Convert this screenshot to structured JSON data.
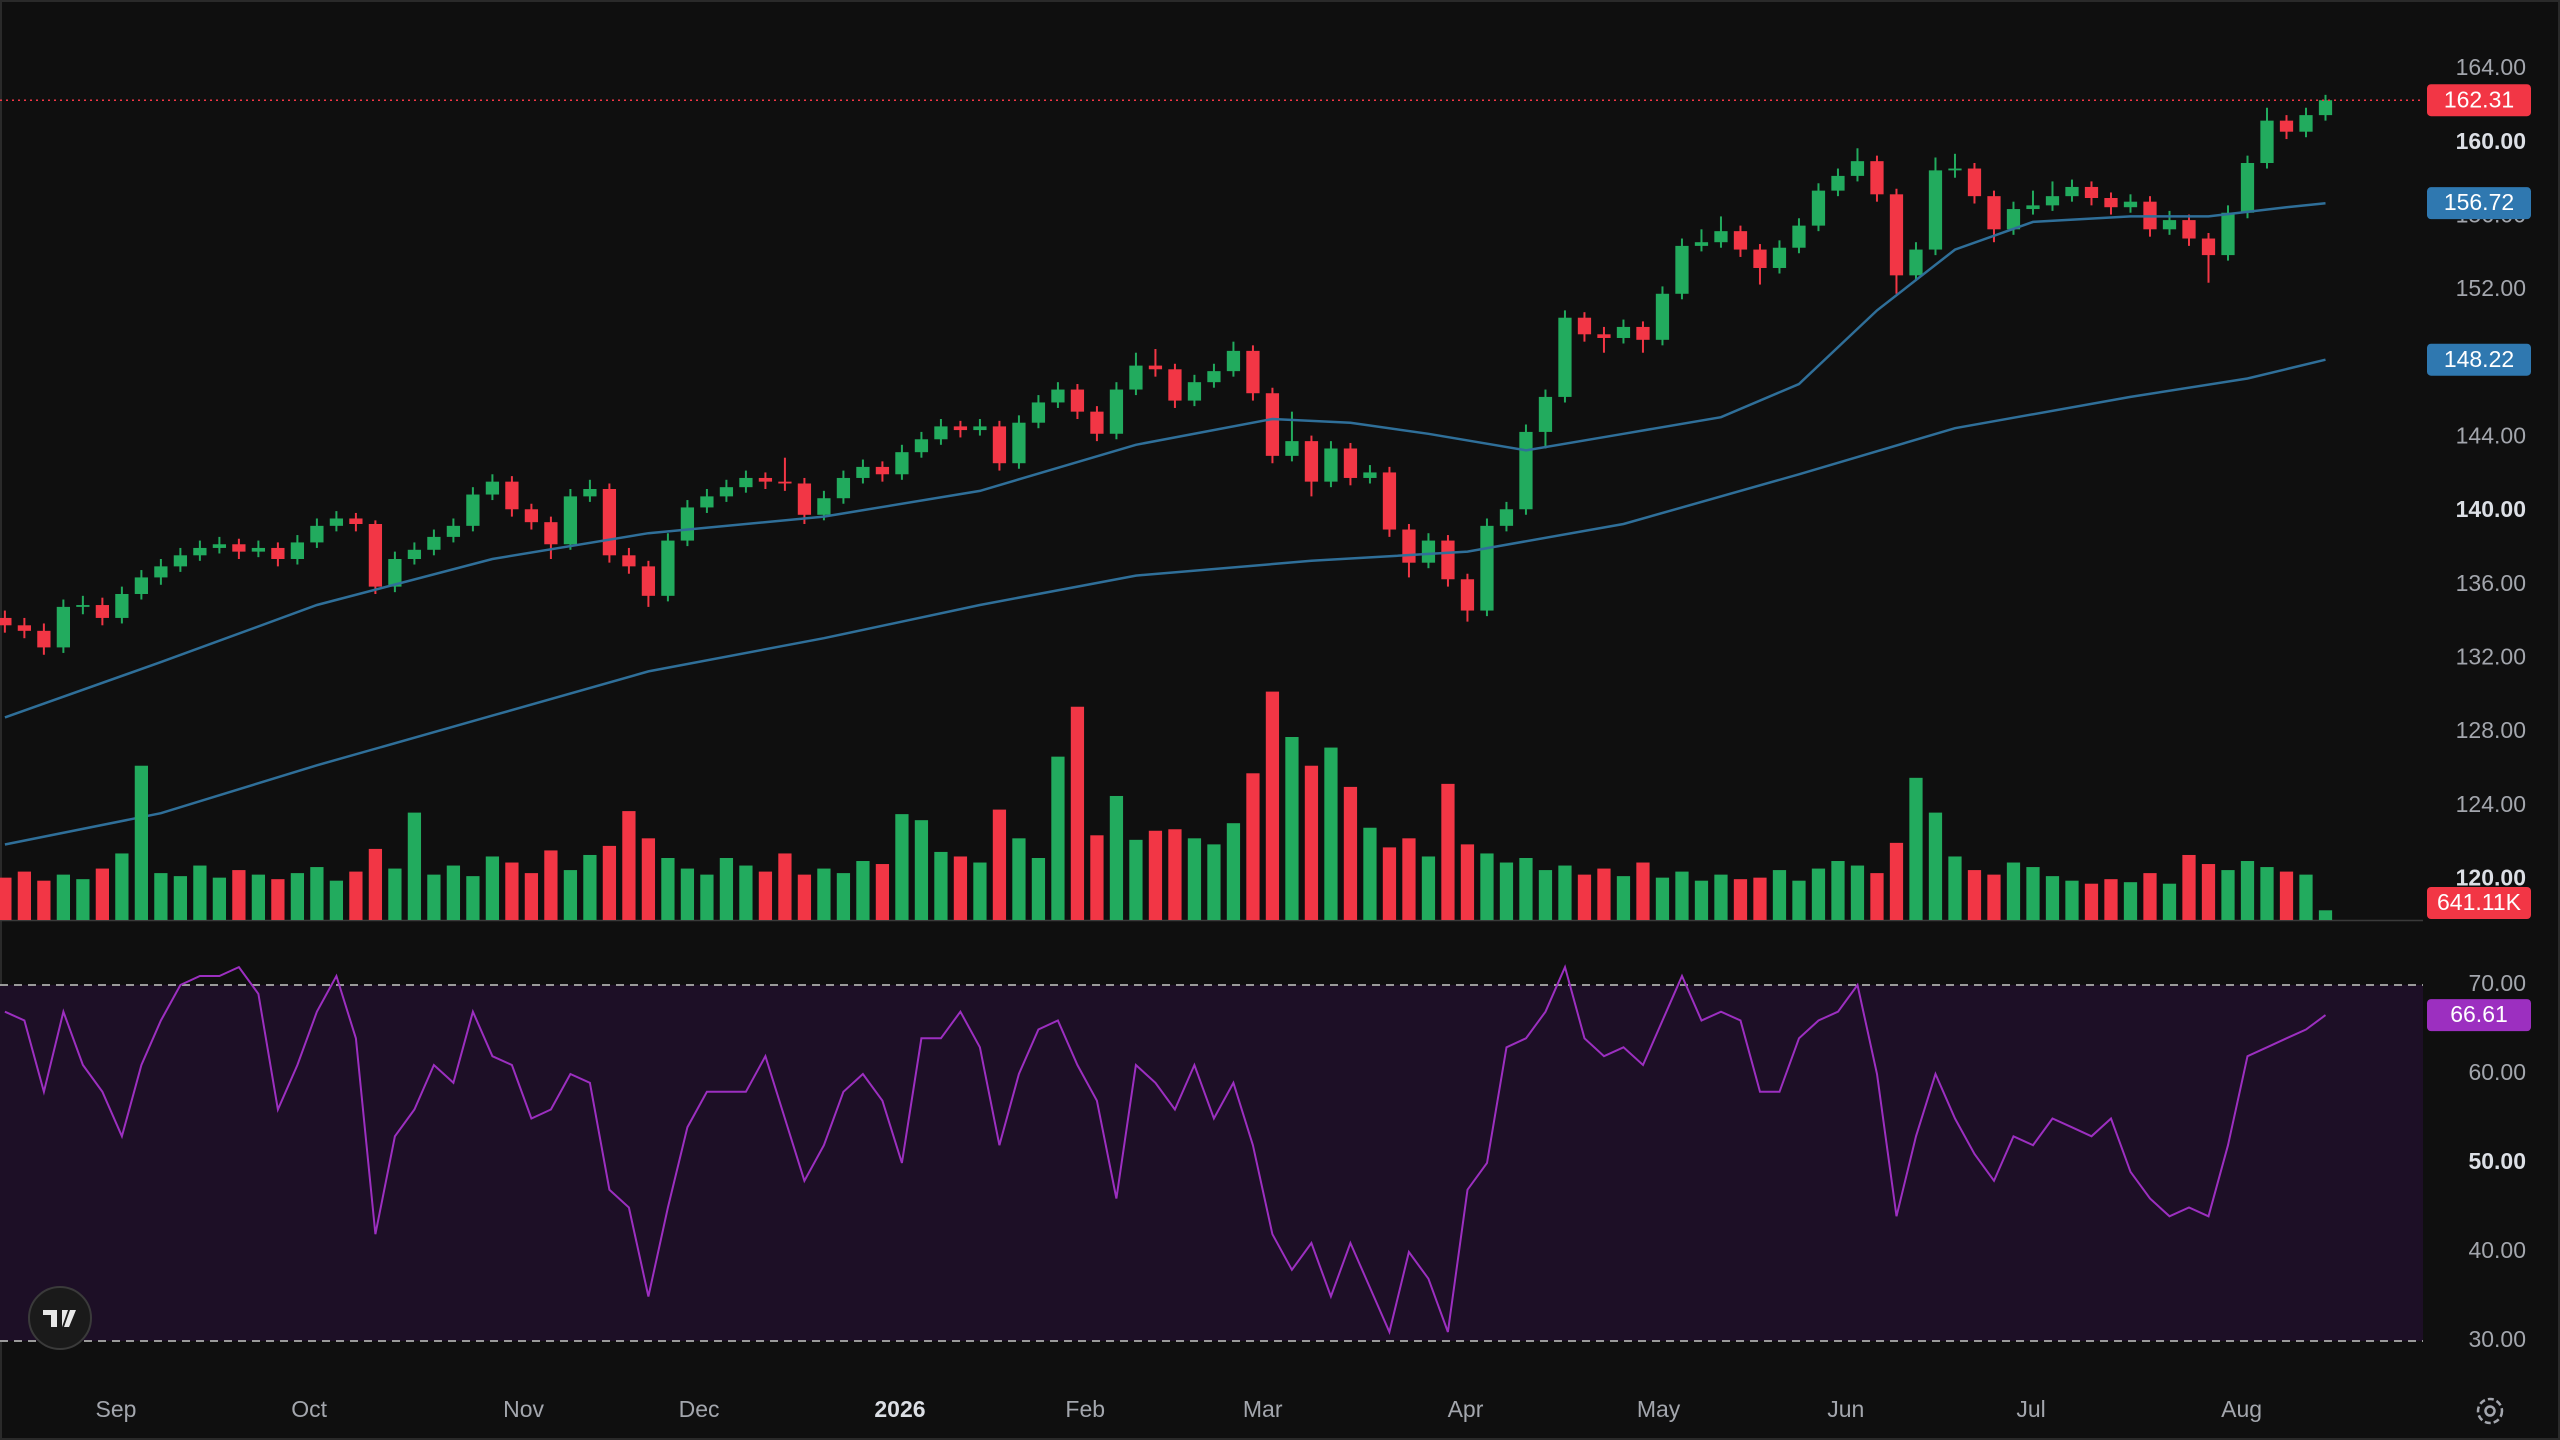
{
  "chart_data": [
    {
      "type": "candlestick",
      "xlim": [
        -0.25,
        124
      ],
      "xticks": [
        {
          "value": 5.7,
          "label": "Sep"
        },
        {
          "value": 15.6,
          "label": "Oct"
        },
        {
          "value": 26.6,
          "label": "Nov"
        },
        {
          "value": 35.6,
          "label": "Dec"
        },
        {
          "value": 45.9,
          "label": "2026"
        },
        {
          "value": 55.4,
          "label": "Feb"
        },
        {
          "value": 64.5,
          "label": "Mar"
        },
        {
          "value": 74.9,
          "label": "Apr"
        },
        {
          "value": 84.8,
          "label": "May"
        },
        {
          "value": 94.4,
          "label": "Jun"
        },
        {
          "value": 103.9,
          "label": "Jul"
        },
        {
          "value": 114.7,
          "label": "Aug"
        }
      ],
      "ylim": [
        117.8,
        167.75
      ],
      "yticks": [
        {
          "value": 120,
          "label": "120.00"
        },
        {
          "value": 124,
          "label": "124.00"
        },
        {
          "value": 128,
          "label": "128.00"
        },
        {
          "value": 132,
          "label": "132.00"
        },
        {
          "value": 136,
          "label": "136.00"
        },
        {
          "value": 140,
          "label": "140.00"
        },
        {
          "value": 144,
          "label": "144.00"
        },
        {
          "value": 148,
          "label": "148.00"
        },
        {
          "value": 152,
          "label": "152.00"
        },
        {
          "value": 156,
          "label": "156.00"
        },
        {
          "value": 160,
          "label": "160.00"
        },
        {
          "value": 164,
          "label": "164.00"
        }
      ],
      "up_color": "#22ab5e",
      "down_color": "#f23645",
      "candles": [
        [
          134.2,
          134.6,
          133.4,
          133.8
        ],
        [
          133.8,
          134.2,
          133.1,
          133.5
        ],
        [
          133.5,
          133.9,
          132.2,
          132.6
        ],
        [
          132.6,
          135.2,
          132.3,
          134.8
        ],
        [
          134.8,
          135.4,
          134.4,
          134.9
        ],
        [
          134.9,
          135.3,
          133.8,
          134.2
        ],
        [
          134.2,
          135.9,
          133.9,
          135.5
        ],
        [
          135.5,
          136.8,
          135.2,
          136.4
        ],
        [
          136.4,
          137.4,
          136.0,
          137
        ],
        [
          137,
          138,
          136.7,
          137.6
        ],
        [
          137.6,
          138.4,
          137.3,
          138
        ],
        [
          138,
          138.6,
          137.7,
          138.2
        ],
        [
          138.2,
          138.5,
          137.4,
          137.8
        ],
        [
          137.8,
          138.4,
          137.5,
          138
        ],
        [
          138,
          138.3,
          137.0,
          137.4
        ],
        [
          137.4,
          138.7,
          137.1,
          138.3
        ],
        [
          138.3,
          139.6,
          138,
          139.2
        ],
        [
          139.2,
          140,
          138.9,
          139.6
        ],
        [
          139.6,
          139.9,
          138.9,
          139.3
        ],
        [
          139.3,
          139.5,
          135.5,
          135.9
        ],
        [
          135.9,
          137.8,
          135.6,
          137.4
        ],
        [
          137.4,
          138.3,
          137.1,
          137.9
        ],
        [
          137.9,
          139,
          137.6,
          138.6
        ],
        [
          138.6,
          139.6,
          138.3,
          139.2
        ],
        [
          139.2,
          141.3,
          138.9,
          140.9
        ],
        [
          140.9,
          142,
          140.6,
          141.6
        ],
        [
          141.6,
          141.9,
          139.7,
          140.1
        ],
        [
          140.1,
          140.4,
          139,
          139.4
        ],
        [
          139.4,
          139.7,
          137.4,
          138.2
        ],
        [
          138.2,
          141.2,
          137.9,
          140.8
        ],
        [
          140.8,
          141.7,
          140.5,
          141.2
        ],
        [
          141.2,
          141.5,
          137.2,
          137.6
        ],
        [
          137.6,
          138,
          136.6,
          137
        ],
        [
          137,
          137.3,
          134.8,
          135.4
        ],
        [
          135.4,
          138.8,
          135.1,
          138.4
        ],
        [
          138.4,
          140.6,
          138.1,
          140.2
        ],
        [
          140.2,
          141.2,
          139.9,
          140.8
        ],
        [
          140.8,
          141.7,
          140.5,
          141.3
        ],
        [
          141.3,
          142.2,
          141,
          141.8
        ],
        [
          141.8,
          142.1,
          141.2,
          141.6
        ],
        [
          141.6,
          142.9,
          141.1,
          141.5
        ],
        [
          141.5,
          141.8,
          139.3,
          139.8
        ],
        [
          139.8,
          141.1,
          139.5,
          140.7
        ],
        [
          140.7,
          142.2,
          140.4,
          141.8
        ],
        [
          141.8,
          142.8,
          141.5,
          142.4
        ],
        [
          142.4,
          142.7,
          141.6,
          142
        ],
        [
          142,
          143.6,
          141.7,
          143.2
        ],
        [
          143.2,
          144.3,
          142.9,
          143.9
        ],
        [
          143.9,
          145,
          143.6,
          144.6
        ],
        [
          144.6,
          144.9,
          144,
          144.4
        ],
        [
          144.4,
          145,
          144.1,
          144.6
        ],
        [
          144.6,
          144.9,
          142.2,
          142.6
        ],
        [
          142.6,
          145.2,
          142.3,
          144.8
        ],
        [
          144.8,
          146.3,
          144.5,
          145.9
        ],
        [
          145.9,
          147,
          145.6,
          146.6
        ],
        [
          146.6,
          146.9,
          145,
          145.4
        ],
        [
          145.4,
          145.7,
          143.8,
          144.2
        ],
        [
          144.2,
          147,
          143.9,
          146.6
        ],
        [
          146.6,
          148.6,
          146.3,
          147.9
        ],
        [
          147.9,
          148.8,
          147.3,
          147.7
        ],
        [
          147.7,
          148,
          145.6,
          146
        ],
        [
          146,
          147.4,
          145.7,
          147
        ],
        [
          147,
          148,
          146.7,
          147.6
        ],
        [
          147.6,
          149.2,
          147.3,
          148.7
        ],
        [
          148.7,
          149,
          146,
          146.4
        ],
        [
          146.4,
          146.7,
          142.6,
          143
        ],
        [
          143,
          145.4,
          142.7,
          143.8
        ],
        [
          143.8,
          144.1,
          140.8,
          141.6
        ],
        [
          141.6,
          143.8,
          141.3,
          143.4
        ],
        [
          143.4,
          143.7,
          141.4,
          141.8
        ],
        [
          141.8,
          142.5,
          141.5,
          142.1
        ],
        [
          142.1,
          142.4,
          138.6,
          139
        ],
        [
          139,
          139.3,
          136.4,
          137.2
        ],
        [
          137.2,
          138.8,
          136.9,
          138.4
        ],
        [
          138.4,
          138.7,
          135.9,
          136.3
        ],
        [
          136.3,
          136.6,
          134,
          134.6
        ],
        [
          134.6,
          139.6,
          134.3,
          139.2
        ],
        [
          139.2,
          140.5,
          138.9,
          140.1
        ],
        [
          140.1,
          144.7,
          139.8,
          144.3
        ],
        [
          144.3,
          146.6,
          143.4,
          146.2
        ],
        [
          146.2,
          150.9,
          145.9,
          150.5
        ],
        [
          150.5,
          150.8,
          149.2,
          149.6
        ],
        [
          149.6,
          150,
          148.6,
          149.4
        ],
        [
          149.4,
          150.4,
          149.1,
          150
        ],
        [
          150,
          150.3,
          148.6,
          149.3
        ],
        [
          149.3,
          152.2,
          149,
          151.8
        ],
        [
          151.8,
          154.8,
          151.5,
          154.4
        ],
        [
          154.4,
          155.3,
          154.1,
          154.6
        ],
        [
          154.6,
          156,
          154.3,
          155.2
        ],
        [
          155.2,
          155.5,
          153.8,
          154.2
        ],
        [
          154.2,
          154.5,
          152.3,
          153.2
        ],
        [
          153.2,
          154.7,
          152.9,
          154.3
        ],
        [
          154.3,
          155.9,
          154,
          155.5
        ],
        [
          155.5,
          157.8,
          155.2,
          157.4
        ],
        [
          157.4,
          158.6,
          157.1,
          158.2
        ],
        [
          158.2,
          159.7,
          157.9,
          159
        ],
        [
          159,
          159.3,
          156.8,
          157.2
        ],
        [
          157.2,
          157.5,
          151.8,
          152.8
        ],
        [
          152.8,
          154.6,
          152.5,
          154.2
        ],
        [
          154.2,
          159.2,
          153.9,
          158.5
        ],
        [
          158.5,
          159.4,
          158.1,
          158.6
        ],
        [
          158.6,
          158.9,
          156.7,
          157.1
        ],
        [
          157.1,
          157.4,
          154.6,
          155.3
        ],
        [
          155.3,
          156.8,
          155,
          156.4
        ],
        [
          156.4,
          157.4,
          156.1,
          156.6
        ],
        [
          156.6,
          157.9,
          156.3,
          157.1
        ],
        [
          157.1,
          158,
          156.8,
          157.6
        ],
        [
          157.6,
          157.9,
          156.6,
          157
        ],
        [
          157,
          157.3,
          156.1,
          156.5
        ],
        [
          156.5,
          157.2,
          156.2,
          156.8
        ],
        [
          156.8,
          157.1,
          154.9,
          155.3
        ],
        [
          155.3,
          156.3,
          155,
          155.8
        ],
        [
          155.8,
          156.1,
          154.4,
          154.8
        ],
        [
          154.8,
          155.1,
          152.4,
          153.9
        ],
        [
          153.9,
          156.6,
          153.6,
          156.2
        ],
        [
          156.2,
          159.3,
          155.9,
          158.9
        ],
        [
          158.9,
          161.9,
          158.6,
          161.2
        ],
        [
          161.2,
          161.5,
          160.2,
          160.6
        ],
        [
          160.6,
          161.9,
          160.3,
          161.5
        ],
        [
          161.5,
          162.6,
          161.2,
          162.31
        ]
      ],
      "overlays": [
        {
          "color": "#2f6f99",
          "x": [
            0,
            8,
            16,
            25,
            33,
            42,
            50,
            58,
            65,
            69,
            73,
            78,
            83,
            88,
            92,
            96,
            100,
            104,
            109,
            113,
            117,
            119
          ],
          "values": [
            128.8,
            131.8,
            134.9,
            137.4,
            138.8,
            139.7,
            141.1,
            143.6,
            145.0,
            144.8,
            144.2,
            143.3,
            144.2,
            145.1,
            146.9,
            150.9,
            154.2,
            155.7,
            156.0,
            156.0,
            156.5,
            156.72
          ]
        },
        {
          "color": "#2f6f99",
          "x": [
            0,
            8,
            16,
            25,
            33,
            42,
            50,
            58,
            67,
            75,
            83,
            92,
            100,
            109,
            115,
            119
          ],
          "values": [
            121.9,
            123.6,
            126.2,
            128.9,
            131.3,
            133.1,
            134.9,
            136.5,
            137.3,
            137.8,
            139.3,
            142,
            144.5,
            146.2,
            147.2,
            148.22
          ]
        }
      ]
    },
    {
      "type": "volume",
      "ylim": [
        0,
        16000000
      ],
      "values": [
        2800000,
        3200000,
        2600000,
        3000000,
        2700000,
        3400000,
        4400000,
        10200000,
        3100000,
        2900000,
        3600000,
        2800000,
        3300000,
        3000000,
        2700000,
        3100000,
        3500000,
        2600000,
        3200000,
        4700000,
        3400000,
        7100000,
        3000000,
        3600000,
        2900000,
        4200000,
        3800000,
        3100000,
        4600000,
        3300000,
        4300000,
        4900000,
        7200000,
        5400000,
        4100000,
        3400000,
        3000000,
        4100000,
        3600000,
        3200000,
        4400000,
        3000000,
        3400000,
        3100000,
        3900000,
        3700000,
        7000000,
        6600000,
        4500000,
        4200000,
        3800000,
        7300000,
        5400000,
        4100000,
        10800000,
        14100000,
        5600000,
        8200000,
        5300000,
        5900000,
        6000000,
        5400000,
        5000000,
        6400000,
        9700000,
        15100000,
        12100000,
        10200000,
        11400000,
        8800000,
        6100000,
        4800000,
        5400000,
        4200000,
        9000000,
        5000000,
        4400000,
        3800000,
        4100000,
        3300000,
        3600000,
        3000000,
        3400000,
        2900000,
        3800000,
        2800000,
        3200000,
        2600000,
        3000000,
        2700000,
        2800000,
        3300000,
        2600000,
        3400000,
        3900000,
        3600000,
        3100000,
        5100000,
        9400000,
        7100000,
        4200000,
        3300000,
        3000000,
        3800000,
        3500000,
        2900000,
        2600000,
        2400000,
        2700000,
        2500000,
        3100000,
        2400000,
        4300000,
        3700000,
        3300000,
        3900000,
        3500000,
        3200000,
        3000000,
        641110
      ],
      "last_value_label": "641.11K"
    },
    {
      "type": "rsi",
      "ylim": [
        25.5,
        75.5
      ],
      "yticks": [
        {
          "value": 30,
          "label": "30.00"
        },
        {
          "value": 40,
          "label": "40.00"
        },
        {
          "value": 50,
          "label": "50.00"
        },
        {
          "value": 60,
          "label": "60.00"
        },
        {
          "value": 70,
          "label": "70.00"
        }
      ],
      "band": [
        30,
        70
      ],
      "color": "#9c2fc0",
      "band_color": "#1d0f26",
      "values": [
        67,
        66,
        58,
        67,
        61,
        58,
        53,
        61,
        66,
        70,
        71,
        71,
        72,
        69,
        56,
        61,
        67,
        71,
        64,
        42,
        53,
        56,
        61,
        59,
        67,
        62,
        61,
        55,
        56,
        60,
        59,
        47,
        45,
        35,
        45,
        54,
        58,
        58,
        58,
        62,
        55,
        48,
        52,
        58,
        60,
        57,
        50,
        64,
        64,
        67,
        63,
        52,
        60,
        65,
        66,
        61,
        57,
        46,
        61,
        59,
        56,
        61,
        55,
        59,
        52,
        42,
        38,
        41,
        35,
        41,
        36,
        31,
        40,
        37,
        31,
        47,
        50,
        63,
        64,
        67,
        72,
        64,
        62,
        63,
        61,
        66,
        71,
        66,
        67,
        66,
        58,
        58,
        64,
        66,
        67,
        70,
        60,
        44,
        53,
        60,
        55,
        51,
        48,
        53,
        52,
        55,
        54,
        53,
        55,
        49,
        46,
        44,
        45,
        44,
        52,
        62,
        63,
        64,
        65,
        66.61
      ]
    }
  ]
}
